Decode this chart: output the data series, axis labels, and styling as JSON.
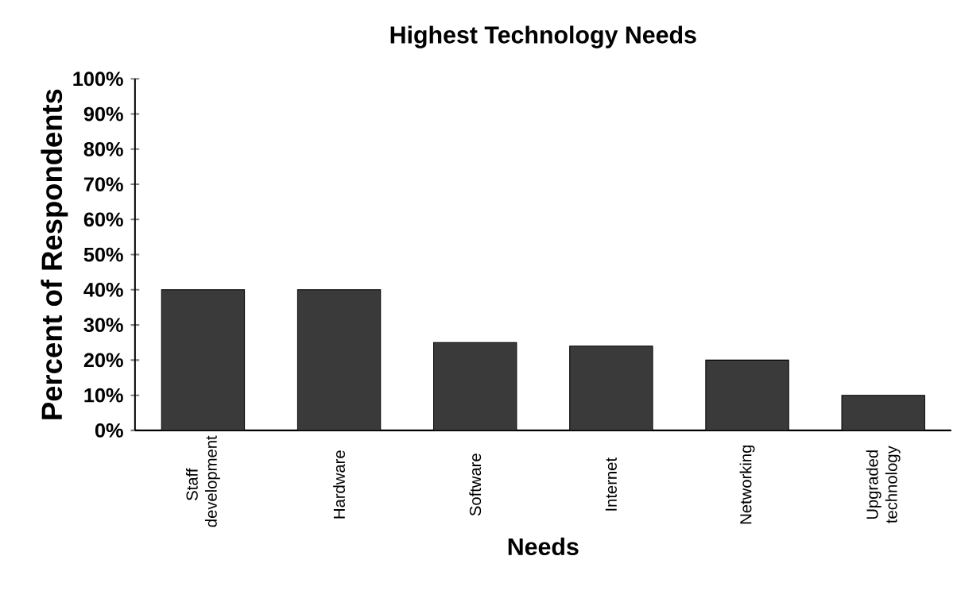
{
  "chart_data": {
    "type": "bar",
    "title": "Highest Technology Needs",
    "xlabel": "Needs",
    "ylabel": "Percent of Respondents",
    "categories": [
      "Staff development",
      "Hardware",
      "Software",
      "Internet",
      "Networking",
      "Upgraded technology"
    ],
    "values": [
      40,
      40,
      25,
      24,
      20,
      10
    ],
    "color": "#3a3a3a",
    "ylim": [
      0,
      100
    ],
    "yticks": [
      {
        "value": 0,
        "label": "0%"
      },
      {
        "value": 10,
        "label": "10%"
      },
      {
        "value": 20,
        "label": "20%"
      },
      {
        "value": 30,
        "label": "30%"
      },
      {
        "value": 40,
        "label": "40%"
      },
      {
        "value": 50,
        "label": "50%"
      },
      {
        "value": 60,
        "label": "60%"
      },
      {
        "value": 70,
        "label": "70%"
      },
      {
        "value": 80,
        "label": "80%"
      },
      {
        "value": 90,
        "label": "90%"
      },
      {
        "value": 100,
        "label": "100%"
      }
    ],
    "grid": false
  }
}
